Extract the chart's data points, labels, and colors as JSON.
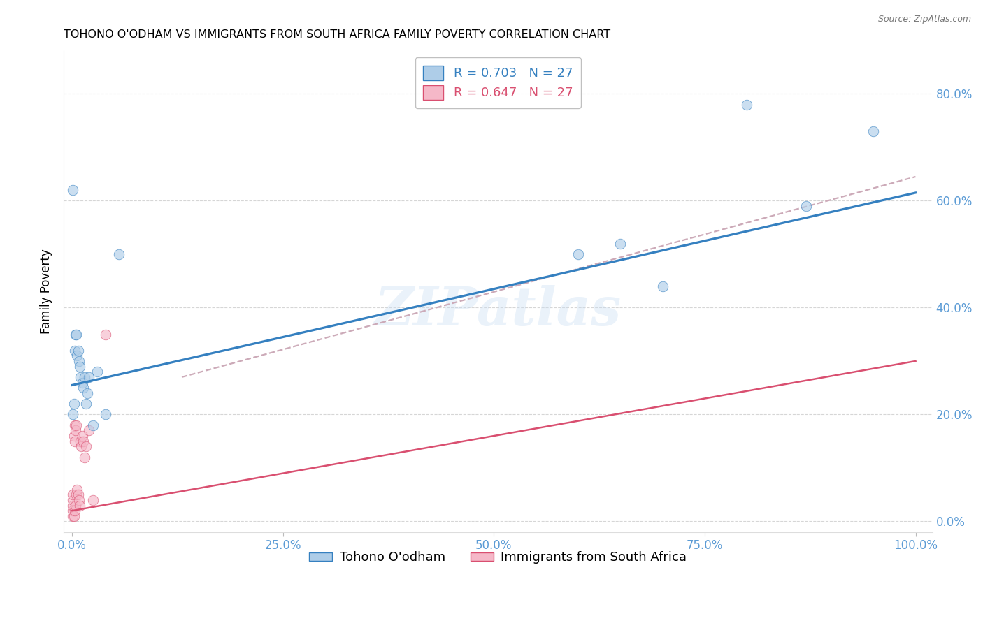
{
  "title": "TOHONO O'ODHAM VS IMMIGRANTS FROM SOUTH AFRICA FAMILY POVERTY CORRELATION CHART",
  "source": "Source: ZipAtlas.com",
  "ylabel": "Family Poverty",
  "blue_label": "Tohono O'odham",
  "pink_label": "Immigrants from South Africa",
  "blue_R": "0.703",
  "blue_N": "27",
  "pink_R": "0.647",
  "pink_N": "27",
  "blue_color": "#aecde8",
  "pink_color": "#f5b8c8",
  "blue_line_color": "#3580c0",
  "pink_line_color": "#d94f70",
  "dashed_line_color": "#ccaab8",
  "watermark_text": "ZIPatlas",
  "background_color": "#ffffff",
  "tick_color": "#5b9bd5",
  "grid_color": "#cccccc",
  "blue_x": [
    0.001,
    0.001,
    0.002,
    0.003,
    0.004,
    0.005,
    0.006,
    0.007,
    0.008,
    0.009,
    0.01,
    0.012,
    0.013,
    0.015,
    0.016,
    0.018,
    0.02,
    0.025,
    0.03,
    0.04,
    0.055,
    0.6,
    0.65,
    0.7,
    0.8,
    0.87,
    0.95
  ],
  "blue_y": [
    0.62,
    0.2,
    0.22,
    0.32,
    0.35,
    0.35,
    0.31,
    0.32,
    0.3,
    0.29,
    0.27,
    0.26,
    0.25,
    0.27,
    0.22,
    0.24,
    0.27,
    0.18,
    0.28,
    0.2,
    0.5,
    0.5,
    0.52,
    0.44,
    0.78,
    0.59,
    0.73
  ],
  "pink_x": [
    0.001,
    0.001,
    0.001,
    0.001,
    0.001,
    0.002,
    0.002,
    0.003,
    0.003,
    0.003,
    0.004,
    0.004,
    0.005,
    0.005,
    0.006,
    0.007,
    0.008,
    0.009,
    0.01,
    0.011,
    0.012,
    0.013,
    0.015,
    0.016,
    0.02,
    0.025,
    0.04
  ],
  "pink_y": [
    0.01,
    0.02,
    0.03,
    0.04,
    0.05,
    0.01,
    0.16,
    0.02,
    0.15,
    0.18,
    0.03,
    0.17,
    0.05,
    0.18,
    0.06,
    0.05,
    0.04,
    0.03,
    0.15,
    0.14,
    0.16,
    0.15,
    0.12,
    0.14,
    0.17,
    0.04,
    0.35
  ],
  "blue_line_x0": 0.0,
  "blue_line_y0": 0.255,
  "blue_line_x1": 1.0,
  "blue_line_y1": 0.615,
  "pink_line_x0": 0.0,
  "pink_line_y0": 0.02,
  "pink_line_x1": 1.0,
  "pink_line_y1": 0.3,
  "dashed_line_x0": 0.13,
  "dashed_line_y0": 0.27,
  "dashed_line_x1": 1.0,
  "dashed_line_y1": 0.645,
  "xlim": [
    -0.01,
    1.02
  ],
  "ylim": [
    -0.02,
    0.88
  ],
  "xticks": [
    0.0,
    0.25,
    0.5,
    0.75,
    1.0
  ],
  "xtick_labels": [
    "0.0%",
    "25.0%",
    "50.0%",
    "75.0%",
    "100.0%"
  ],
  "yticks": [
    0.0,
    0.2,
    0.4,
    0.6,
    0.8
  ],
  "ytick_labels": [
    "0.0%",
    "20.0%",
    "40.0%",
    "60.0%",
    "80.0%"
  ],
  "title_fontsize": 11.5,
  "axis_label_fontsize": 12,
  "tick_fontsize": 12,
  "legend_fontsize": 13,
  "scatter_size": 110,
  "scatter_alpha": 0.65,
  "scatter_lw": 0.6
}
